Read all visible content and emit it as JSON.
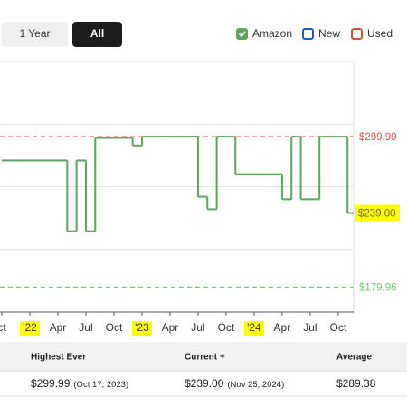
{
  "buttons": [
    {
      "label": "1 Year",
      "active": false
    },
    {
      "label": "All",
      "active": true
    }
  ],
  "legend": [
    {
      "name": "Amazon",
      "color": "#5ea35e",
      "checked": true
    },
    {
      "name": "New",
      "color": "#2a55c8",
      "checked": false
    },
    {
      "name": "Used",
      "color": "#c8553a",
      "checked": false
    }
  ],
  "chart_data": {
    "type": "line",
    "step": true,
    "grid": true,
    "highlight_color": "#ffff00",
    "x": [
      "2021-10",
      "2021-11",
      "2021-12",
      "2022-01",
      "2022-02",
      "2022-03",
      "2022-04",
      "2022-05",
      "2022-06",
      "2022-07",
      "2022-08",
      "2022-09",
      "2022-10",
      "2022-11",
      "2022-12",
      "2023-01",
      "2023-02",
      "2023-03",
      "2023-04",
      "2023-05",
      "2023-06",
      "2023-07",
      "2023-08",
      "2023-09",
      "2023-10",
      "2023-11",
      "2023-12",
      "2024-01",
      "2024-02",
      "2024-03",
      "2024-04",
      "2024-05",
      "2024-06",
      "2024-07",
      "2024-08",
      "2024-09",
      "2024-10",
      "2024-11"
    ],
    "series": [
      {
        "name": "Amazon",
        "color": "#5ea35e",
        "values": [
          281,
          281,
          281,
          281,
          281,
          281,
          281,
          224.5,
          281,
          224.5,
          299,
          299,
          299,
          299,
          293,
          299.99,
          299.99,
          299.99,
          299.99,
          299.99,
          299.99,
          252,
          242,
          299.99,
          299.99,
          270,
          270,
          270,
          270,
          270,
          250,
          299.99,
          250,
          250,
          299.99,
          299.99,
          299.99,
          239
        ]
      }
    ],
    "ylim": [
      160,
      360
    ],
    "yticks": [
      160,
      210,
      260,
      310,
      360
    ],
    "xticks": [
      {
        "value": "2021-10",
        "label": "ct"
      },
      {
        "value": "2022-01",
        "label": "'22",
        "highlight": true
      },
      {
        "value": "2022-04",
        "label": "Apr"
      },
      {
        "value": "2022-07",
        "label": "Jul"
      },
      {
        "value": "2022-10",
        "label": "Oct"
      },
      {
        "value": "2023-01",
        "label": "'23",
        "highlight": true
      },
      {
        "value": "2023-04",
        "label": "Apr"
      },
      {
        "value": "2023-07",
        "label": "Jul"
      },
      {
        "value": "2023-10",
        "label": "Oct"
      },
      {
        "value": "2024-01",
        "label": "'24",
        "highlight": true
      },
      {
        "value": "2024-04",
        "label": "Apr"
      },
      {
        "value": "2024-07",
        "label": "Jul"
      },
      {
        "value": "2024-10",
        "label": "Oct"
      }
    ],
    "reference_lines": [
      {
        "value": 299.99,
        "label": "$299.99",
        "color": "#d9534f"
      },
      {
        "value": 179.96,
        "label": "$179.96",
        "color": "#7cc47c"
      }
    ],
    "current": {
      "value": 239,
      "label": "$239.00",
      "highlight": true
    }
  },
  "table": {
    "headers": [
      "Highest Ever",
      "Current +",
      "Average"
    ],
    "rows": [
      [
        {
          "price": "$299.99",
          "date": "(Oct 17, 2023)"
        },
        {
          "price": "$239.00",
          "date": "(Nov 25, 2024)"
        },
        {
          "price": "$289.38"
        }
      ]
    ]
  }
}
